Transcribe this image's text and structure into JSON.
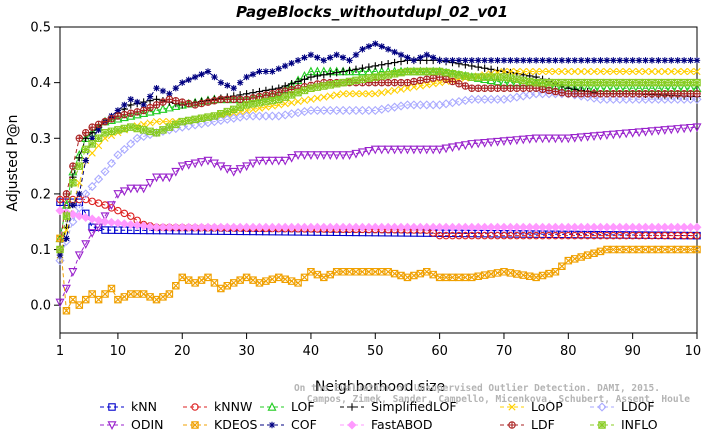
{
  "chart_data": {
    "type": "line",
    "title": "PageBlocks_withoutdupl_02_v01",
    "xlabel": "Neighborhood size",
    "ylabel": "Adjusted P@n",
    "xlim": [
      1,
      100
    ],
    "ylim": [
      -0.05,
      0.5
    ],
    "x_ticks": [
      1,
      10,
      20,
      30,
      40,
      50,
      60,
      70,
      80,
      90,
      100
    ],
    "y_ticks": [
      0.0,
      0.1,
      0.2,
      0.3,
      0.4,
      0.5
    ],
    "x_tick_labels": [
      "1",
      "10",
      "20",
      "30",
      "40",
      "50",
      "60",
      "70",
      "80",
      "90",
      "100"
    ],
    "y_tick_labels": [
      "0.0",
      "0.1",
      "0.2",
      "0.3",
      "0.4",
      "0.5"
    ],
    "grid": false,
    "legend_position": "bottom",
    "watermark": [
      "Campos, Zimek, Sander, Campello, Micenkova, Schubert, Assent, Houle",
      "On the Evaluation of Unsupervised Outlier Detection. DAMI, 2015."
    ],
    "series": [
      {
        "name": "kNN",
        "color": "#0000cc",
        "marker": "square",
        "points": [
          [
            1,
            0.185
          ],
          [
            4,
            0.185
          ],
          [
            5,
            0.165
          ],
          [
            6,
            0.14
          ],
          [
            7,
            0.14
          ],
          [
            8,
            0.135
          ],
          [
            100,
            0.125
          ]
        ]
      },
      {
        "name": "kNNW",
        "color": "#dd2222",
        "marker": "circle",
        "points": [
          [
            1,
            0.19
          ],
          [
            5,
            0.19
          ],
          [
            8,
            0.18
          ],
          [
            10,
            0.17
          ],
          [
            12,
            0.16
          ],
          [
            14,
            0.145
          ],
          [
            16,
            0.14
          ],
          [
            58,
            0.135
          ],
          [
            60,
            0.125
          ],
          [
            100,
            0.125
          ]
        ]
      },
      {
        "name": "LOF",
        "color": "#22cc22",
        "marker": "triangle-up",
        "points": [
          [
            1,
            0.12
          ],
          [
            3,
            0.24
          ],
          [
            5,
            0.3
          ],
          [
            8,
            0.33
          ],
          [
            12,
            0.34
          ],
          [
            16,
            0.35
          ],
          [
            20,
            0.36
          ],
          [
            25,
            0.37
          ],
          [
            30,
            0.37
          ],
          [
            35,
            0.38
          ],
          [
            40,
            0.42
          ],
          [
            45,
            0.42
          ],
          [
            50,
            0.42
          ],
          [
            55,
            0.42
          ],
          [
            60,
            0.42
          ],
          [
            65,
            0.41
          ],
          [
            70,
            0.4
          ],
          [
            75,
            0.4
          ],
          [
            80,
            0.39
          ],
          [
            90,
            0.39
          ],
          [
            100,
            0.39
          ]
        ]
      },
      {
        "name": "SimplifiedLOF",
        "color": "#000000",
        "marker": "plus",
        "points": [
          [
            1,
            0.1
          ],
          [
            2,
            0.14
          ],
          [
            3,
            0.23
          ],
          [
            5,
            0.3
          ],
          [
            8,
            0.33
          ],
          [
            12,
            0.36
          ],
          [
            16,
            0.37
          ],
          [
            20,
            0.36
          ],
          [
            25,
            0.37
          ],
          [
            30,
            0.38
          ],
          [
            35,
            0.39
          ],
          [
            40,
            0.41
          ],
          [
            45,
            0.42
          ],
          [
            50,
            0.43
          ],
          [
            55,
            0.44
          ],
          [
            60,
            0.44
          ],
          [
            65,
            0.43
          ],
          [
            70,
            0.42
          ],
          [
            75,
            0.41
          ],
          [
            80,
            0.39
          ],
          [
            85,
            0.38
          ],
          [
            90,
            0.38
          ],
          [
            100,
            0.375
          ]
        ]
      },
      {
        "name": "LoOP",
        "color": "#ffd000",
        "marker": "x",
        "points": [
          [
            1,
            0.09
          ],
          [
            3,
            0.18
          ],
          [
            5,
            0.26
          ],
          [
            8,
            0.3
          ],
          [
            12,
            0.32
          ],
          [
            16,
            0.33
          ],
          [
            20,
            0.33
          ],
          [
            25,
            0.34
          ],
          [
            30,
            0.35
          ],
          [
            35,
            0.36
          ],
          [
            40,
            0.37
          ],
          [
            45,
            0.38
          ],
          [
            50,
            0.38
          ],
          [
            55,
            0.39
          ],
          [
            60,
            0.4
          ],
          [
            65,
            0.41
          ],
          [
            70,
            0.42
          ],
          [
            75,
            0.42
          ],
          [
            80,
            0.42
          ],
          [
            90,
            0.42
          ],
          [
            100,
            0.42
          ]
        ]
      },
      {
        "name": "LDOF",
        "color": "#aaaaff",
        "marker": "diamond",
        "points": [
          [
            1,
            0.08
          ],
          [
            3,
            0.15
          ],
          [
            5,
            0.2
          ],
          [
            8,
            0.24
          ],
          [
            10,
            0.27
          ],
          [
            13,
            0.3
          ],
          [
            16,
            0.31
          ],
          [
            20,
            0.32
          ],
          [
            25,
            0.33
          ],
          [
            30,
            0.34
          ],
          [
            35,
            0.34
          ],
          [
            40,
            0.35
          ],
          [
            45,
            0.35
          ],
          [
            50,
            0.35
          ],
          [
            55,
            0.36
          ],
          [
            60,
            0.36
          ],
          [
            65,
            0.37
          ],
          [
            70,
            0.37
          ],
          [
            75,
            0.38
          ],
          [
            80,
            0.38
          ],
          [
            85,
            0.37
          ],
          [
            90,
            0.37
          ],
          [
            100,
            0.37
          ]
        ]
      },
      {
        "name": "ODIN",
        "color": "#9922cc",
        "marker": "triangle-down",
        "points": [
          [
            1,
            0.005
          ],
          [
            2,
            0.03
          ],
          [
            3,
            0.06
          ],
          [
            4,
            0.09
          ],
          [
            5,
            0.11
          ],
          [
            6,
            0.13
          ],
          [
            7,
            0.14
          ],
          [
            8,
            0.16
          ],
          [
            9,
            0.18
          ],
          [
            10,
            0.2
          ],
          [
            12,
            0.21
          ],
          [
            14,
            0.21
          ],
          [
            16,
            0.23
          ],
          [
            18,
            0.23
          ],
          [
            20,
            0.25
          ],
          [
            24,
            0.26
          ],
          [
            28,
            0.24
          ],
          [
            32,
            0.26
          ],
          [
            36,
            0.26
          ],
          [
            38,
            0.27
          ],
          [
            42,
            0.27
          ],
          [
            46,
            0.27
          ],
          [
            50,
            0.28
          ],
          [
            55,
            0.28
          ],
          [
            60,
            0.28
          ],
          [
            65,
            0.29
          ],
          [
            70,
            0.295
          ],
          [
            75,
            0.3
          ],
          [
            80,
            0.3
          ],
          [
            85,
            0.305
          ],
          [
            90,
            0.31
          ],
          [
            95,
            0.315
          ],
          [
            100,
            0.32
          ]
        ]
      },
      {
        "name": "KDEOS",
        "color": "#f0a000",
        "marker": "square-x",
        "points": [
          [
            1,
            0.12
          ],
          [
            2,
            -0.01
          ],
          [
            3,
            0.01
          ],
          [
            4,
            0.0
          ],
          [
            5,
            0.01
          ],
          [
            6,
            0.02
          ],
          [
            7,
            0.01
          ],
          [
            8,
            0.02
          ],
          [
            9,
            0.03
          ],
          [
            10,
            0.01
          ],
          [
            12,
            0.02
          ],
          [
            14,
            0.02
          ],
          [
            16,
            0.01
          ],
          [
            18,
            0.02
          ],
          [
            20,
            0.05
          ],
          [
            22,
            0.04
          ],
          [
            24,
            0.05
          ],
          [
            26,
            0.03
          ],
          [
            28,
            0.04
          ],
          [
            30,
            0.05
          ],
          [
            32,
            0.04
          ],
          [
            35,
            0.05
          ],
          [
            38,
            0.04
          ],
          [
            40,
            0.06
          ],
          [
            42,
            0.05
          ],
          [
            44,
            0.06
          ],
          [
            48,
            0.06
          ],
          [
            52,
            0.06
          ],
          [
            55,
            0.05
          ],
          [
            58,
            0.06
          ],
          [
            60,
            0.05
          ],
          [
            65,
            0.05
          ],
          [
            70,
            0.06
          ],
          [
            75,
            0.05
          ],
          [
            78,
            0.06
          ],
          [
            80,
            0.08
          ],
          [
            83,
            0.09
          ],
          [
            86,
            0.1
          ],
          [
            90,
            0.1
          ],
          [
            95,
            0.1
          ],
          [
            100,
            0.1
          ]
        ]
      },
      {
        "name": "COF",
        "color": "#000080",
        "marker": "asterisk",
        "points": [
          [
            1,
            0.09
          ],
          [
            2,
            0.12
          ],
          [
            3,
            0.18
          ],
          [
            4,
            0.2
          ],
          [
            5,
            0.26
          ],
          [
            6,
            0.3
          ],
          [
            8,
            0.33
          ],
          [
            10,
            0.35
          ],
          [
            12,
            0.37
          ],
          [
            14,
            0.36
          ],
          [
            16,
            0.39
          ],
          [
            18,
            0.38
          ],
          [
            20,
            0.4
          ],
          [
            22,
            0.41
          ],
          [
            24,
            0.42
          ],
          [
            26,
            0.4
          ],
          [
            28,
            0.39
          ],
          [
            30,
            0.41
          ],
          [
            32,
            0.42
          ],
          [
            34,
            0.42
          ],
          [
            36,
            0.43
          ],
          [
            38,
            0.44
          ],
          [
            40,
            0.45
          ],
          [
            42,
            0.44
          ],
          [
            44,
            0.45
          ],
          [
            46,
            0.44
          ],
          [
            48,
            0.46
          ],
          [
            50,
            0.47
          ],
          [
            52,
            0.46
          ],
          [
            54,
            0.45
          ],
          [
            56,
            0.44
          ],
          [
            58,
            0.45
          ],
          [
            60,
            0.44
          ],
          [
            65,
            0.44
          ],
          [
            70,
            0.44
          ],
          [
            75,
            0.44
          ],
          [
            80,
            0.44
          ],
          [
            85,
            0.44
          ],
          [
            90,
            0.44
          ],
          [
            95,
            0.44
          ],
          [
            100,
            0.44
          ]
        ]
      },
      {
        "name": "FastABOD",
        "color": "#ff99ff",
        "marker": "diamond-filled",
        "points": [
          [
            1,
            0.17
          ],
          [
            4,
            0.16
          ],
          [
            8,
            0.15
          ],
          [
            12,
            0.145
          ],
          [
            16,
            0.14
          ],
          [
            100,
            0.14
          ]
        ]
      },
      {
        "name": "LDF",
        "color": "#aa2222",
        "marker": "circle-plus",
        "points": [
          [
            1,
            0.1
          ],
          [
            2,
            0.2
          ],
          [
            4,
            0.3
          ],
          [
            6,
            0.32
          ],
          [
            8,
            0.33
          ],
          [
            10,
            0.34
          ],
          [
            14,
            0.35
          ],
          [
            18,
            0.37
          ],
          [
            22,
            0.36
          ],
          [
            26,
            0.37
          ],
          [
            30,
            0.37
          ],
          [
            34,
            0.38
          ],
          [
            38,
            0.39
          ],
          [
            42,
            0.4
          ],
          [
            46,
            0.4
          ],
          [
            50,
            0.4
          ],
          [
            55,
            0.4
          ],
          [
            60,
            0.41
          ],
          [
            65,
            0.39
          ],
          [
            70,
            0.39
          ],
          [
            75,
            0.39
          ],
          [
            80,
            0.38
          ],
          [
            85,
            0.38
          ],
          [
            90,
            0.38
          ],
          [
            100,
            0.38
          ]
        ]
      },
      {
        "name": "INFLO",
        "color": "#88cc22",
        "marker": "square-star",
        "points": [
          [
            1,
            0.1
          ],
          [
            3,
            0.22
          ],
          [
            5,
            0.28
          ],
          [
            8,
            0.31
          ],
          [
            12,
            0.32
          ],
          [
            16,
            0.31
          ],
          [
            20,
            0.33
          ],
          [
            25,
            0.34
          ],
          [
            30,
            0.36
          ],
          [
            35,
            0.37
          ],
          [
            40,
            0.39
          ],
          [
            45,
            0.4
          ],
          [
            50,
            0.41
          ],
          [
            55,
            0.42
          ],
          [
            60,
            0.42
          ],
          [
            65,
            0.41
          ],
          [
            70,
            0.41
          ],
          [
            75,
            0.4
          ],
          [
            80,
            0.4
          ],
          [
            90,
            0.4
          ],
          [
            100,
            0.4
          ]
        ]
      }
    ]
  }
}
